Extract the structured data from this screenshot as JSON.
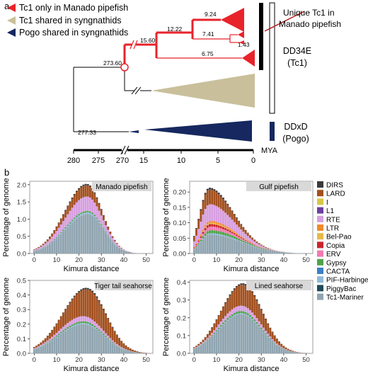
{
  "panel_a": {
    "label": "a",
    "legend": [
      {
        "label": "Tc1 only in Manado pipefish",
        "color": "#e8232a"
      },
      {
        "label": "Tc1 shared in syngnathids",
        "color": "#c9bf9b"
      },
      {
        "label": "Pogo shared in syngnathids",
        "color": "#16285f"
      }
    ],
    "node_labels": [
      "273.60",
      "277.33",
      "15.60",
      "12.22",
      "9.24",
      "7.41",
      "6.75",
      "1.43"
    ],
    "groups": [
      {
        "label_line1": "DD34E",
        "label_line2": "(Tc1)"
      },
      {
        "label_line1": "DDxD",
        "label_line2": "(Pogo)"
      }
    ],
    "annotation_line1": "Unique Tc1 in",
    "annotation_line2": "Manado pipefish",
    "time_axis": {
      "ticks": [
        "280",
        "275",
        "270",
        "15",
        "10",
        "5",
        "0"
      ],
      "unit": "MYA"
    }
  },
  "panel_b": {
    "label": "b"
  },
  "chart_data": [
    {
      "type": "bar",
      "stacked": true,
      "title": "Manado pipefish",
      "xlabel": "Kimura distance",
      "ylabel": "Percentage of genome",
      "xlim": [
        -2,
        53
      ],
      "ylim": [
        0,
        2.1
      ],
      "xticks": [
        "0",
        "10",
        "20",
        "30",
        "40",
        "50"
      ],
      "yticks": [
        "0.0",
        "0.5",
        "1.0",
        "1.5",
        "2.0"
      ],
      "series": [
        {
          "name": "Tc1-Mariner",
          "peak": 1.15,
          "mode": 24,
          "left_width": 10,
          "right_width": 7
        },
        {
          "name": "PIF-Harbinger",
          "peak": 0.05,
          "mode": 22,
          "left_width": 10,
          "right_width": 8
        },
        {
          "name": "Gypsy",
          "peak": 0.04,
          "mode": 22,
          "left_width": 10,
          "right_width": 8
        },
        {
          "name": "RTE",
          "peak": 0.42,
          "mode": 23,
          "left_width": 10,
          "right_width": 7
        },
        {
          "name": "LARD",
          "peak": 0.33,
          "mode": 23,
          "left_width": 9,
          "right_width": 6
        },
        {
          "name": "DIRS",
          "peak": 0.04,
          "mode": 23,
          "left_width": 9,
          "right_width": 6
        }
      ]
    },
    {
      "type": "bar",
      "stacked": true,
      "title": "Gulf pipefish",
      "xlabel": "Kimura distance",
      "ylabel": "Percentage of genome",
      "xlim": [
        -2,
        53
      ],
      "ylim": [
        0,
        0.235
      ],
      "xticks": [
        "0",
        "10",
        "20",
        "30",
        "40",
        "50"
      ],
      "yticks": [
        "0.00",
        "0.05",
        "0.10",
        "0.15",
        "0.20"
      ],
      "series": [
        {
          "name": "Tc1-Mariner",
          "peak": 0.062,
          "mode": 7,
          "left_width": 4,
          "right_width": 14
        },
        {
          "name": "PIF-Harbinger",
          "peak": 0.004,
          "mode": 8,
          "left_width": 4,
          "right_width": 12
        },
        {
          "name": "Gypsy",
          "peak": 0.01,
          "mode": 8,
          "left_width": 4,
          "right_width": 12
        },
        {
          "name": "ERV",
          "peak": 0.012,
          "mode": 7,
          "left_width": 4,
          "right_width": 10
        },
        {
          "name": "Copia",
          "peak": 0.008,
          "mode": 7,
          "left_width": 4,
          "right_width": 10
        },
        {
          "name": "Bel-Pao",
          "peak": 0.004,
          "mode": 7,
          "left_width": 4,
          "right_width": 10
        },
        {
          "name": "LTR",
          "peak": 0.006,
          "mode": 7,
          "left_width": 4,
          "right_width": 10
        },
        {
          "name": "RTE",
          "peak": 0.055,
          "mode": 6,
          "left_width": 4,
          "right_width": 11
        },
        {
          "name": "LARD",
          "peak": 0.048,
          "mode": 6,
          "left_width": 4,
          "right_width": 10
        },
        {
          "name": "DIRS",
          "peak": 0.006,
          "mode": 6,
          "left_width": 4,
          "right_width": 10
        }
      ]
    },
    {
      "type": "bar",
      "stacked": true,
      "title": "Tiger tail seahorse",
      "xlabel": "Kimura distance",
      "ylabel": "Percentage of genome",
      "xlim": [
        -2,
        53
      ],
      "ylim": [
        0,
        0.5
      ],
      "xticks": [
        "0",
        "10",
        "20",
        "30",
        "40",
        "50"
      ],
      "yticks": [
        "0.0",
        "0.1",
        "0.2",
        "0.3",
        "0.4",
        "0.5"
      ],
      "series": [
        {
          "name": "Tc1-Mariner",
          "peak": 0.2,
          "mode": 22,
          "left_width": 11,
          "right_width": 9
        },
        {
          "name": "PIF-Harbinger",
          "peak": 0.008,
          "mode": 22,
          "left_width": 11,
          "right_width": 9
        },
        {
          "name": "Gypsy",
          "peak": 0.012,
          "mode": 22,
          "left_width": 11,
          "right_width": 9
        },
        {
          "name": "RTE",
          "peak": 0.035,
          "mode": 22,
          "left_width": 11,
          "right_width": 9
        },
        {
          "name": "LARD",
          "peak": 0.19,
          "mode": 25,
          "left_width": 10,
          "right_width": 8
        },
        {
          "name": "DIRS",
          "peak": 0.01,
          "mode": 25,
          "left_width": 10,
          "right_width": 8
        }
      ]
    },
    {
      "type": "bar",
      "stacked": true,
      "title": "Lined seahorse",
      "xlabel": "Kimura distance",
      "ylabel": "Percentage of genome",
      "xlim": [
        -2,
        53
      ],
      "ylim": [
        0,
        0.41
      ],
      "xticks": [
        "0",
        "10",
        "20",
        "30",
        "40",
        "50"
      ],
      "yticks": [
        "0.0",
        "0.1",
        "0.2",
        "0.3",
        "0.4"
      ],
      "series": [
        {
          "name": "Tc1-Mariner",
          "peak": 0.22,
          "mode": 21,
          "left_width": 10,
          "right_width": 9
        },
        {
          "name": "PIF-Harbinger",
          "peak": 0.006,
          "mode": 21,
          "left_width": 10,
          "right_width": 9
        },
        {
          "name": "Gypsy",
          "peak": 0.012,
          "mode": 21,
          "left_width": 10,
          "right_width": 9
        },
        {
          "name": "RTE",
          "peak": 0.03,
          "mode": 21,
          "left_width": 10,
          "right_width": 9
        },
        {
          "name": "LARD",
          "peak": 0.12,
          "mode": 23,
          "left_width": 9,
          "right_width": 8
        },
        {
          "name": "DIRS",
          "peak": 0.008,
          "mode": 23,
          "left_width": 9,
          "right_width": 8
        }
      ]
    }
  ],
  "legend_b": {
    "entries": [
      {
        "name": "DIRS",
        "color": "#3a3a3a"
      },
      {
        "name": "LARD",
        "color": "#a3501e"
      },
      {
        "name": "I",
        "color": "#d9c64a"
      },
      {
        "name": "L1",
        "color": "#6b3fa0"
      },
      {
        "name": "RTE",
        "color": "#d79ee0"
      },
      {
        "name": "LTR",
        "color": "#f08a2a"
      },
      {
        "name": "Bel-Pao",
        "color": "#e8b84a"
      },
      {
        "name": "Copia",
        "color": "#c8262c"
      },
      {
        "name": "ERV",
        "color": "#f07ab0"
      },
      {
        "name": "Gypsy",
        "color": "#4fa34a"
      },
      {
        "name": "CACTA",
        "color": "#3b7fc4"
      },
      {
        "name": "PIF-Harbinger",
        "color": "#8fb8d8"
      },
      {
        "name": "PiggyBac",
        "color": "#1e4a5a"
      },
      {
        "name": "Tc1-Mariner",
        "color": "#8fa4b0"
      }
    ]
  }
}
